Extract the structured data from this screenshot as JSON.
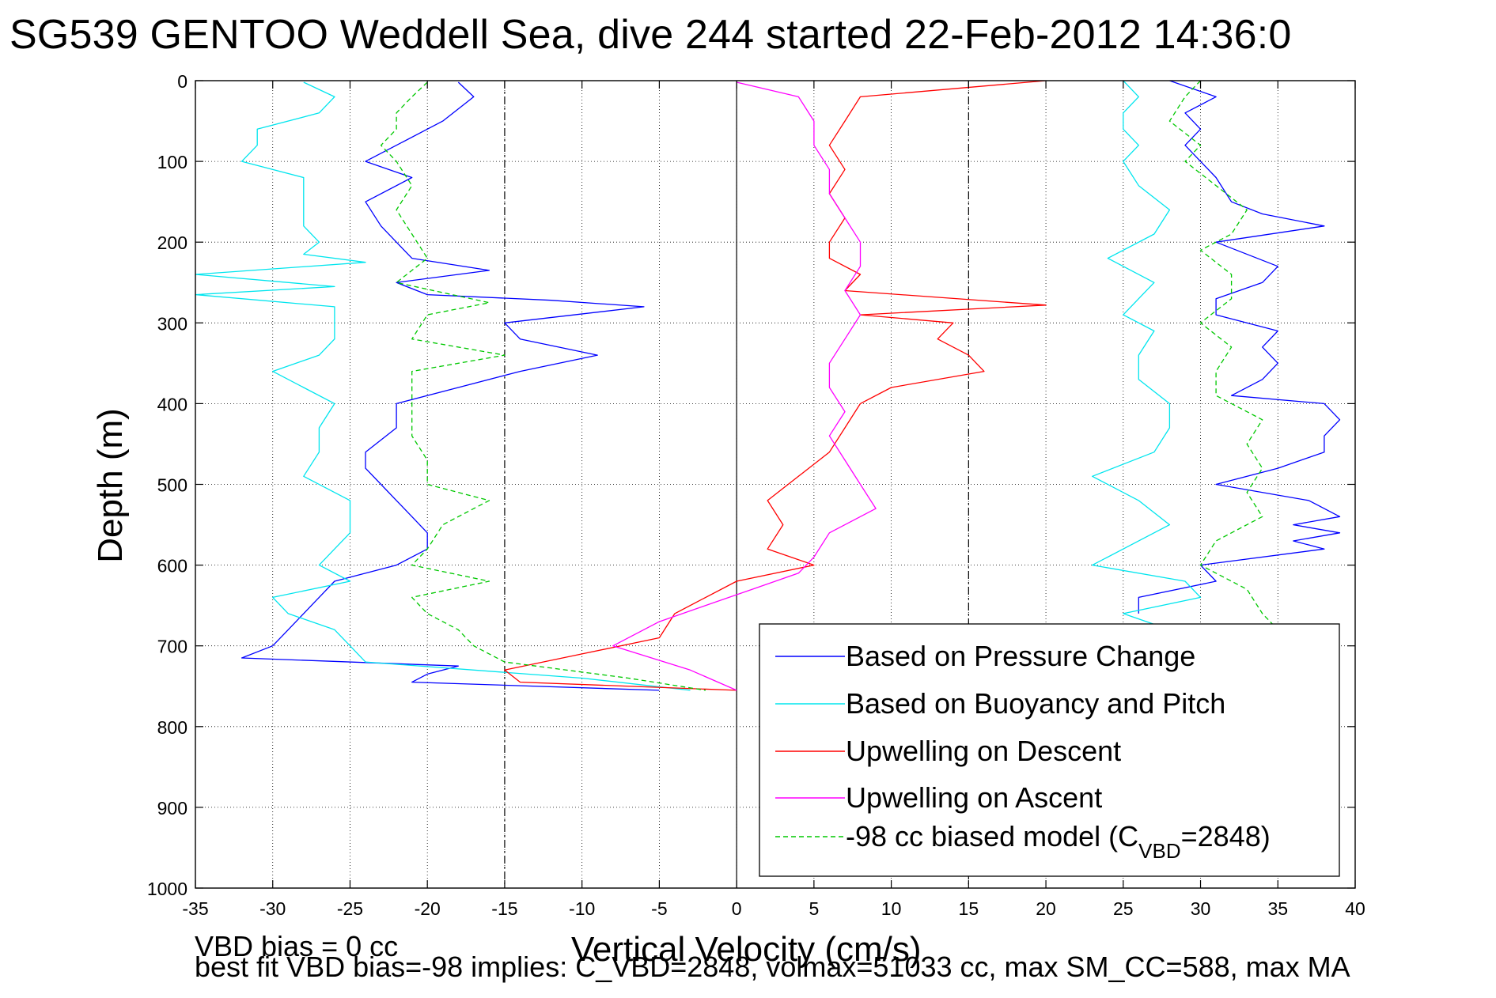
{
  "figure": {
    "title": "SG539 GENTOO Weddell Sea, dive 244 started 22-Feb-2012 14:36:0",
    "footer_line1": "VBD bias = 0 cc",
    "footer_line2": "best fit VBD bias=-98 implies: C_VBD=2848, volmax=51033 cc, max SM_CC=588, max MA"
  },
  "chart_data": {
    "type": "line",
    "xlabel": "Vertical Velocity (cm/s)",
    "ylabel": "Depth (m)",
    "xlim": [
      -35,
      40
    ],
    "ylim": [
      0,
      1000
    ],
    "y_reversed": true,
    "grid": true,
    "x_ticks": [
      -35,
      -30,
      -25,
      -20,
      -15,
      -10,
      -5,
      0,
      5,
      10,
      15,
      20,
      25,
      30,
      35,
      40
    ],
    "y_ticks": [
      0,
      100,
      200,
      300,
      400,
      500,
      600,
      700,
      800,
      900,
      1000
    ],
    "reference_lines": [
      {
        "x": -15,
        "style": "dash-dot",
        "color": "#000000"
      },
      {
        "x": 0,
        "style": "solid",
        "color": "#000000"
      },
      {
        "x": 15,
        "style": "dash-dot",
        "color": "#000000"
      }
    ],
    "legend_position": "bottom-right",
    "series": [
      {
        "name": "Based on Pressure Change",
        "color": "#0000ff",
        "style": "solid",
        "segments": [
          {
            "depth": [
              2,
              20,
              50,
              80,
              100,
              120,
              150,
              180,
              200,
              220,
              235,
              250,
              265,
              272,
              280,
              300,
              320,
              340,
              360,
              380,
              400,
              430,
              460,
              480,
              500,
              520,
              540,
              560,
              580,
              600,
              620,
              640,
              660,
              680,
              700,
              715,
              725,
              735,
              745,
              755
            ],
            "x": [
              -18,
              -17,
              -19,
              -22,
              -24,
              -21,
              -24,
              -23,
              -22,
              -21,
              -16,
              -22,
              -20,
              -12,
              -6,
              -15,
              -14,
              -9,
              -14,
              -18,
              -22,
              -22,
              -24,
              -24,
              -23,
              -22,
              -21,
              -20,
              -20,
              -22,
              -26,
              -27,
              -28,
              -29,
              -30,
              -32,
              -18,
              -20,
              -21,
              -5
            ]
          },
          {
            "depth": [
              0,
              20,
              40,
              60,
              80,
              100,
              120,
              150,
              165,
              180,
              200,
              230,
              250,
              270,
              290,
              310,
              330,
              350,
              370,
              390,
              400,
              420,
              440,
              460,
              480,
              500,
              520,
              540,
              550,
              560,
              570,
              580,
              600,
              620,
              640,
              660
            ],
            "x": [
              28,
              31,
              29,
              30,
              29,
              30,
              31,
              32,
              34,
              38,
              31,
              35,
              34,
              31,
              31,
              35,
              34,
              35,
              34,
              32,
              38,
              39,
              38,
              38,
              35,
              31,
              37,
              39,
              36,
              39,
              36,
              38,
              30,
              31,
              26,
              26
            ]
          }
        ]
      },
      {
        "name": "Based on Buoyancy and Pitch",
        "color": "#00e5ee",
        "style": "solid",
        "segments": [
          {
            "depth": [
              2,
              20,
              40,
              60,
              80,
              100,
              120,
              150,
              180,
              200,
              215,
              225,
              240,
              255,
              265,
              280,
              300,
              320,
              340,
              360,
              380,
              400,
              430,
              460,
              490,
              520,
              540,
              560,
              580,
              600,
              620,
              640,
              660,
              680,
              700,
              720,
              740,
              755
            ],
            "x": [
              -28,
              -26,
              -27,
              -31,
              -31,
              -32,
              -28,
              -28,
              -28,
              -27,
              -28,
              -24,
              -35,
              -26,
              -35,
              -26,
              -26,
              -26,
              -27,
              -30,
              -28,
              -26,
              -27,
              -27,
              -28,
              -25,
              -25,
              -25,
              -26,
              -27,
              -25,
              -30,
              -29,
              -26,
              -25,
              -24,
              -10,
              -3
            ]
          },
          {
            "depth": [
              0,
              20,
              40,
              60,
              80,
              100,
              130,
              160,
              190,
              220,
              250,
              270,
              290,
              310,
              340,
              370,
              400,
              430,
              460,
              490,
              520,
              550,
              580,
              600,
              620,
              640,
              660,
              680
            ],
            "x": [
              25,
              26,
              25,
              25,
              26,
              25,
              26,
              28,
              27,
              24,
              27,
              26,
              25,
              27,
              26,
              26,
              28,
              28,
              27,
              23,
              26,
              28,
              25,
              23,
              29,
              30,
              25,
              28
            ]
          }
        ]
      },
      {
        "name": "Upwelling on Descent",
        "color": "#ff0000",
        "style": "solid",
        "segments": [
          {
            "depth": [
              0,
              20,
              50,
              80,
              110,
              140,
              170,
              200,
              220,
              240,
              260,
              278,
              290,
              300,
              320,
              340,
              360,
              380,
              400,
              430,
              460,
              490,
              520,
              550,
              580,
              600,
              620,
              640,
              660,
              690,
              710,
              730,
              745,
              755
            ],
            "x": [
              20,
              8,
              7,
              6,
              7,
              6,
              7,
              6,
              6,
              8,
              7,
              20,
              8,
              14,
              13,
              15,
              16,
              10,
              8,
              7,
              6,
              4,
              2,
              3,
              2,
              5,
              0,
              -2,
              -4,
              -5,
              -10,
              -15,
              -14,
              0
            ]
          }
        ]
      },
      {
        "name": "Upwelling on Ascent",
        "color": "#ff00ff",
        "style": "solid",
        "segments": [
          {
            "depth": [
              2,
              20,
              50,
              80,
              110,
              140,
              170,
              200,
              230,
              260,
              290,
              320,
              350,
              380,
              410,
              440,
              470,
              500,
              530,
              560,
              590,
              610,
              630,
              650,
              670,
              700,
              730,
              755
            ],
            "x": [
              0,
              4,
              5,
              5,
              6,
              6,
              7,
              8,
              8,
              7,
              8,
              7,
              6,
              6,
              7,
              6,
              7,
              8,
              9,
              6,
              5,
              4,
              1,
              -2,
              -5,
              -8,
              -3,
              0
            ]
          }
        ]
      },
      {
        "name": "-98 cc biased model (C_VBD=2848)",
        "color": "#00c800",
        "style": "dashed",
        "segments": [
          {
            "depth": [
              2,
              20,
              40,
              60,
              80,
              100,
              130,
              160,
              190,
              220,
              250,
              275,
              290,
              320,
              340,
              360,
              380,
              400,
              440,
              470,
              500,
              520,
              550,
              580,
              600,
              620,
              640,
              660,
              680,
              700,
              720,
              740,
              755
            ],
            "x": [
              -20,
              -21,
              -22,
              -22,
              -23,
              -22,
              -21,
              -22,
              -21,
              -20,
              -22,
              -16,
              -20,
              -21,
              -15,
              -21,
              -21,
              -21,
              -21,
              -20,
              -20,
              -16,
              -19,
              -20,
              -21,
              -16,
              -21,
              -20,
              -18,
              -17,
              -15,
              -7,
              -2
            ]
          },
          {
            "depth": [
              0,
              20,
              50,
              80,
              100,
              130,
              160,
              190,
              210,
              240,
              270,
              300,
              330,
              360,
              390,
              420,
              450,
              480,
              510,
              540,
              570,
              600,
              630,
              660,
              680
            ],
            "x": [
              30,
              29,
              28,
              30,
              29,
              31,
              33,
              32,
              30,
              32,
              32,
              30,
              32,
              31,
              31,
              34,
              33,
              34,
              33,
              34,
              31,
              30,
              33,
              34,
              35
            ]
          }
        ]
      }
    ]
  }
}
